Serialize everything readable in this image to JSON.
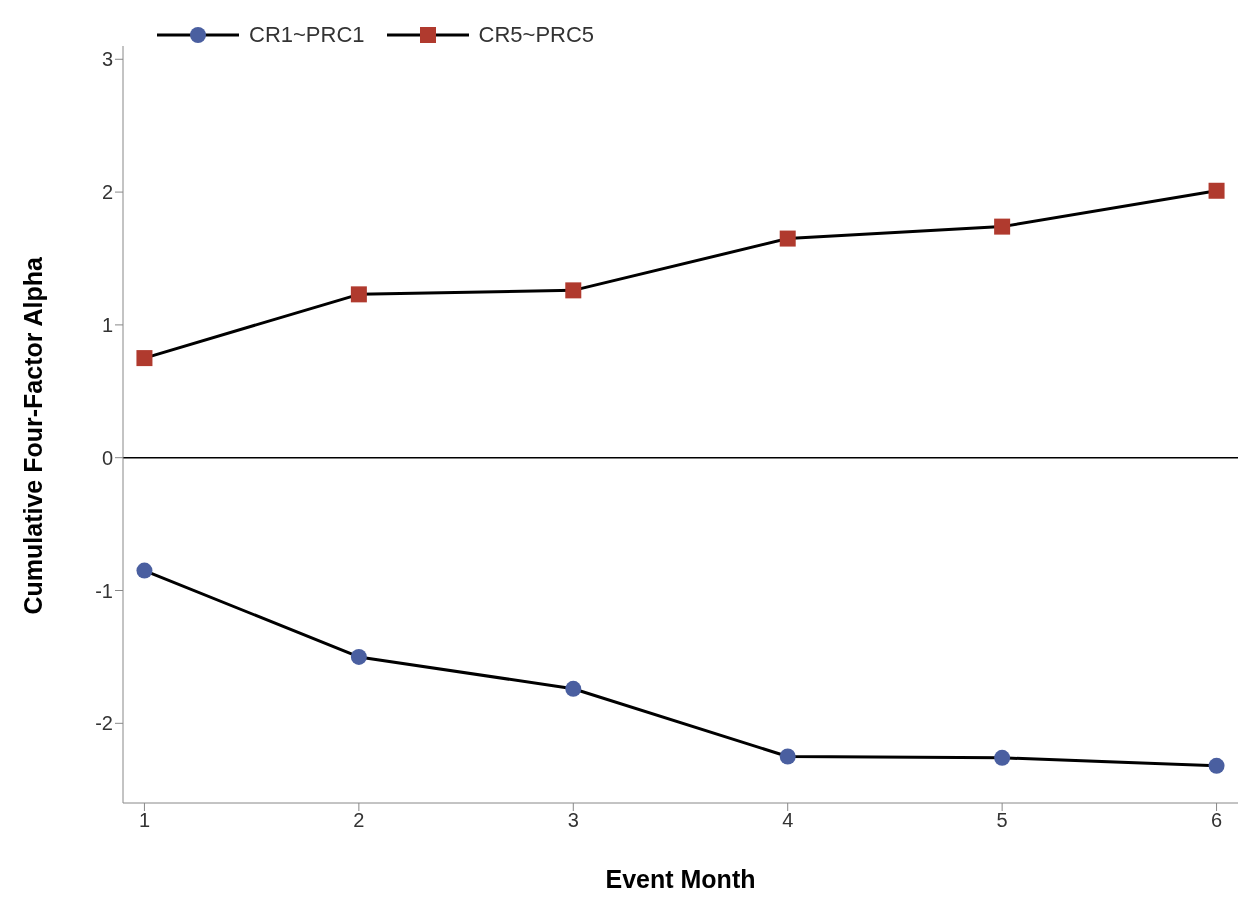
{
  "chart_data": {
    "type": "line",
    "xlabel": "Event Month",
    "ylabel": "Cumulative Four-Factor Alpha",
    "x": [
      1,
      2,
      3,
      4,
      5,
      6
    ],
    "series": [
      {
        "name": "CR1~PRC1",
        "color": "#4a5fa0",
        "marker": "circle",
        "values": [
          -0.85,
          -1.5,
          -1.74,
          -2.25,
          -2.26,
          -2.32
        ]
      },
      {
        "name": "CR5~PRC5",
        "color": "#b03a2e",
        "marker": "square",
        "values": [
          0.75,
          1.23,
          1.26,
          1.65,
          1.74,
          2.01
        ]
      }
    ],
    "xlim": [
      0.9,
      6.1
    ],
    "xticks": [
      1,
      2,
      3,
      4,
      5,
      6
    ],
    "ylim": [
      -2.6,
      3.1
    ],
    "yticks": [
      -2,
      -1,
      0,
      1,
      2,
      3
    ],
    "ref_lines": [
      {
        "axis": "y",
        "value": 0,
        "color": "#000000"
      }
    ],
    "grid": false,
    "legend": "top left",
    "line_style": "solid"
  }
}
